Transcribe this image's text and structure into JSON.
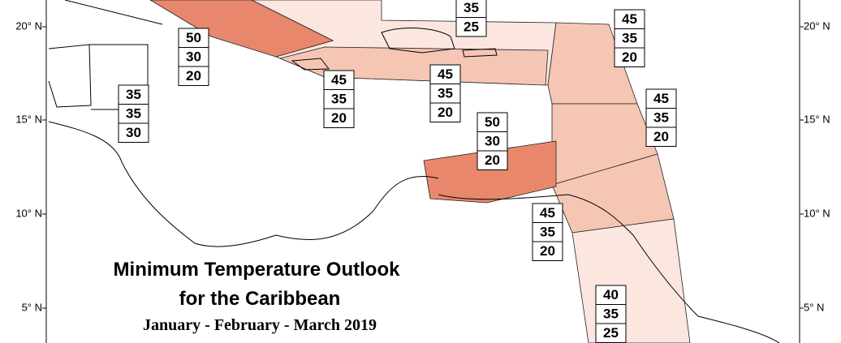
{
  "latitude_labels_left": [
    "20° N",
    "15° N",
    "10° N",
    "5° N"
  ],
  "latitude_labels_right": [
    "20° N",
    "15° N",
    "10° N",
    "5° N"
  ],
  "title": {
    "line1": "Minimum Temperature Outlook",
    "line2": "for the Caribbean",
    "period": "January - February - March 2019"
  },
  "outlooks": [
    {
      "values": [
        35,
        25
      ]
    },
    {
      "values": [
        50,
        30,
        20
      ]
    },
    {
      "values": [
        35,
        35,
        30
      ]
    },
    {
      "values": [
        45,
        35,
        20
      ]
    },
    {
      "values": [
        45,
        35,
        20
      ]
    },
    {
      "values": [
        45,
        35,
        20
      ]
    },
    {
      "values": [
        45,
        35,
        20
      ]
    },
    {
      "values": [
        50,
        30,
        20
      ]
    },
    {
      "values": [
        45,
        35,
        20
      ]
    },
    {
      "values": [
        40,
        35,
        25
      ]
    }
  ]
}
